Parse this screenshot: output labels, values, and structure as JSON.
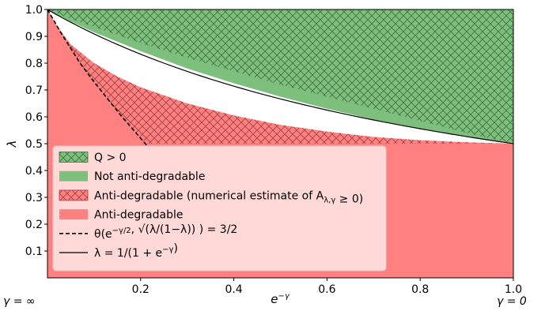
{
  "chart_data": {
    "type": "area",
    "xlabel": "e^{-γ}",
    "ylabel": "λ",
    "xlim": [
      0,
      1
    ],
    "ylim": [
      0,
      1
    ],
    "x_ticks": [
      0.2,
      0.4,
      0.6,
      0.8,
      1.0
    ],
    "x_tick_labels": [
      "0.2",
      "0.4",
      "0.6",
      "0.8",
      "1.0"
    ],
    "y_ticks": [
      0.1,
      0.2,
      0.3,
      0.4,
      0.5,
      0.6,
      0.7,
      0.8,
      0.9,
      1.0
    ],
    "y_tick_labels": [
      "0.1",
      "0.2",
      "0.3",
      "0.4",
      "0.5",
      "0.6",
      "0.7",
      "0.8",
      "0.9",
      "1.0"
    ],
    "corner_labels": {
      "left": "γ = ∞",
      "right": "γ = 0"
    },
    "grid": false,
    "legend_position": "lower-left",
    "colors": {
      "q_positive": "#7dbf7d",
      "not_antidegradable": "#7dbf7d",
      "antidegradable_numerical": "#ff8080",
      "antidegradable": "#ff8080",
      "legend_bg": "#ffe0e0"
    },
    "regions": [
      {
        "name": "Anti-degradable",
        "fill": "antidegradable",
        "description_points": {
          "x": [
            0,
            1
          ],
          "lambda_upper": [
            0.5,
            0.5
          ]
        }
      },
      {
        "name": "Anti-degradable (numerical estimate of A_{λ,γ} ≥ 0)",
        "fill": "antidegradable_numerical",
        "hatched": true,
        "upper_boundary": {
          "x": [
            0.0,
            0.02,
            0.05,
            0.1,
            0.15,
            0.2,
            0.3,
            0.4,
            0.5,
            0.6,
            0.7,
            0.8,
            0.9,
            1.0
          ],
          "y": [
            1.0,
            0.94,
            0.87,
            0.8,
            0.75,
            0.71,
            0.65,
            0.605,
            0.57,
            0.545,
            0.525,
            0.513,
            0.505,
            0.5
          ]
        }
      },
      {
        "name": "Not anti-degradable",
        "fill": "not_antidegradable",
        "lower_boundary": {
          "x": [
            0.0,
            0.05,
            0.1,
            0.2,
            0.3,
            0.4,
            0.5,
            0.6,
            0.7,
            0.8,
            0.9,
            1.0
          ],
          "y": [
            1.0,
            0.955,
            0.915,
            0.845,
            0.78,
            0.725,
            0.675,
            0.63,
            0.59,
            0.555,
            0.525,
            0.5
          ]
        }
      },
      {
        "name": "Q > 0",
        "fill": "q_positive",
        "hatched": true,
        "lower_boundary": {
          "x": [
            0.0,
            0.05,
            0.1,
            0.2,
            0.3,
            0.4,
            0.5,
            0.6,
            0.7,
            0.8,
            0.9,
            1.0
          ],
          "y": [
            1.0,
            0.965,
            0.935,
            0.875,
            0.82,
            0.77,
            0.72,
            0.675,
            0.63,
            0.585,
            0.54,
            0.5
          ]
        }
      }
    ],
    "series": [
      {
        "name": "θ(e^{-γ/2}, √(λ/(1−λ))) = 3/2",
        "style": "dashed",
        "x": [
          0.0,
          0.01,
          0.02,
          0.03,
          0.05,
          0.07,
          0.1,
          0.13,
          0.16,
          0.19,
          0.22
        ],
        "y": [
          1.0,
          0.97,
          0.94,
          0.91,
          0.855,
          0.8,
          0.73,
          0.665,
          0.6,
          0.54,
          0.48
        ]
      },
      {
        "name": "λ = 1/(1+e^{-γ})",
        "style": "solid",
        "formula": "1/(1+x)",
        "x": [
          0.0,
          0.1,
          0.2,
          0.3,
          0.4,
          0.5,
          0.6,
          0.7,
          0.8,
          0.9,
          1.0
        ],
        "y": [
          1.0,
          0.909,
          0.833,
          0.769,
          0.714,
          0.667,
          0.625,
          0.588,
          0.556,
          0.526,
          0.5
        ]
      }
    ],
    "legend": [
      {
        "key": "q_positive",
        "label": "Q > 0"
      },
      {
        "key": "not_antidegradable",
        "label": "Not anti-degradable"
      },
      {
        "key": "antidegradable_numerical",
        "label": "Anti-degradable (numerical estimate of A",
        "sub": "λ,γ",
        "suffix": " ≥ 0)"
      },
      {
        "key": "antidegradable",
        "label": "Anti-degradable"
      },
      {
        "key": "theta_curve",
        "label": "θ(e",
        "sup": "−γ/2",
        "mid": ", √(λ/(1−λ)) ) = 3/2"
      },
      {
        "key": "lambda_curve",
        "label": "λ = 1/(1 + e",
        "sup": "−γ",
        "suffix": ")"
      }
    ]
  }
}
